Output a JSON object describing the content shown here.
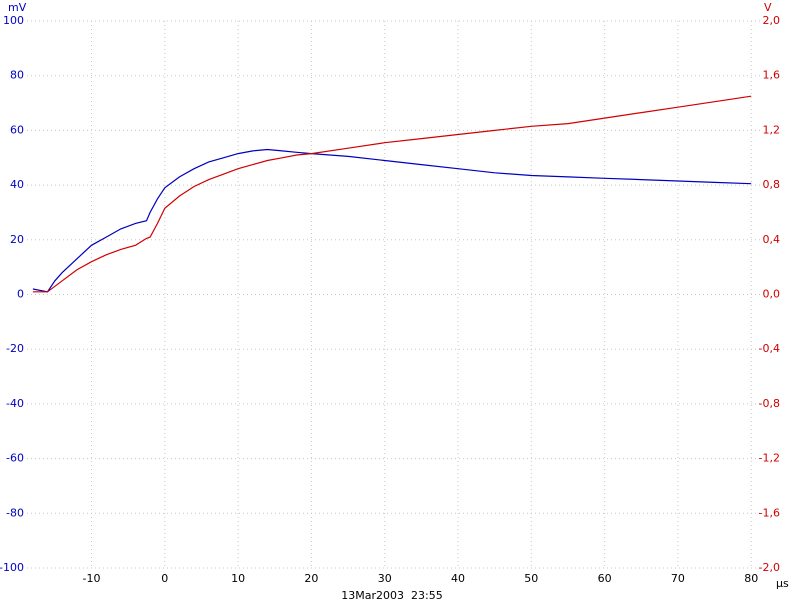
{
  "chart_data": {
    "type": "line",
    "ylabel": "mV",
    "y2label": "V",
    "xlabel": "µs",
    "annotation": "13Mar2003  23:55",
    "x": [
      -18,
      -16,
      -15,
      -14,
      -12,
      -10,
      -8,
      -6,
      -4,
      -2.5,
      -2,
      -1,
      0,
      2,
      4,
      6,
      8,
      10,
      12,
      14,
      16,
      18,
      20,
      25,
      30,
      35,
      40,
      45,
      50,
      55,
      60,
      65,
      70,
      75,
      80
    ],
    "series": [
      {
        "name": "mV",
        "color": "#0000c0",
        "values": [
          2,
          1,
          5,
          8,
          13,
          18,
          21,
          24,
          26,
          27,
          30,
          35,
          39,
          43,
          46,
          48.5,
          50,
          51.5,
          52.5,
          53,
          52.5,
          52,
          51.5,
          50.5,
          49,
          47.5,
          46,
          44.5,
          43.5,
          43,
          42.5,
          42,
          41.5,
          41,
          40.5
        ]
      },
      {
        "name": "V",
        "color": "#d00000",
        "axis": "y2",
        "values": [
          0.02,
          0.02,
          0.06,
          0.1,
          0.18,
          0.24,
          0.29,
          0.33,
          0.36,
          0.41,
          0.42,
          0.52,
          0.63,
          0.72,
          0.79,
          0.84,
          0.88,
          0.92,
          0.95,
          0.98,
          1.0,
          1.02,
          1.03,
          1.07,
          1.11,
          1.14,
          1.17,
          1.2,
          1.23,
          1.25,
          1.29,
          1.33,
          1.37,
          1.41,
          1.45
        ]
      }
    ],
    "xlim": [
      -18.8,
      81.2
    ],
    "ylim": [
      -100,
      100
    ],
    "y2lim": [
      -2,
      2
    ],
    "xticks": [
      -10,
      0,
      10,
      20,
      30,
      40,
      50,
      60,
      70,
      80
    ],
    "yticks": [
      -100,
      -80,
      -60,
      -40,
      -20,
      0,
      20,
      40,
      60,
      80,
      100
    ],
    "y2ticks": [
      {
        "value": -2,
        "label": "-2,0"
      },
      {
        "value": -1.6,
        "label": "-1,6"
      },
      {
        "value": -1.2,
        "label": "-1,2"
      },
      {
        "value": -0.8,
        "label": "-0,8"
      },
      {
        "value": -0.4,
        "label": "-0,4"
      },
      {
        "value": 0,
        "label": "0,0"
      },
      {
        "value": 0.4,
        "label": "0,4"
      },
      {
        "value": 0.8,
        "label": "0,8"
      },
      {
        "value": 1.2,
        "label": "1,2"
      },
      {
        "value": 1.6,
        "label": "1,6"
      },
      {
        "value": 2,
        "label": "2,0"
      }
    ],
    "grid": true
  }
}
